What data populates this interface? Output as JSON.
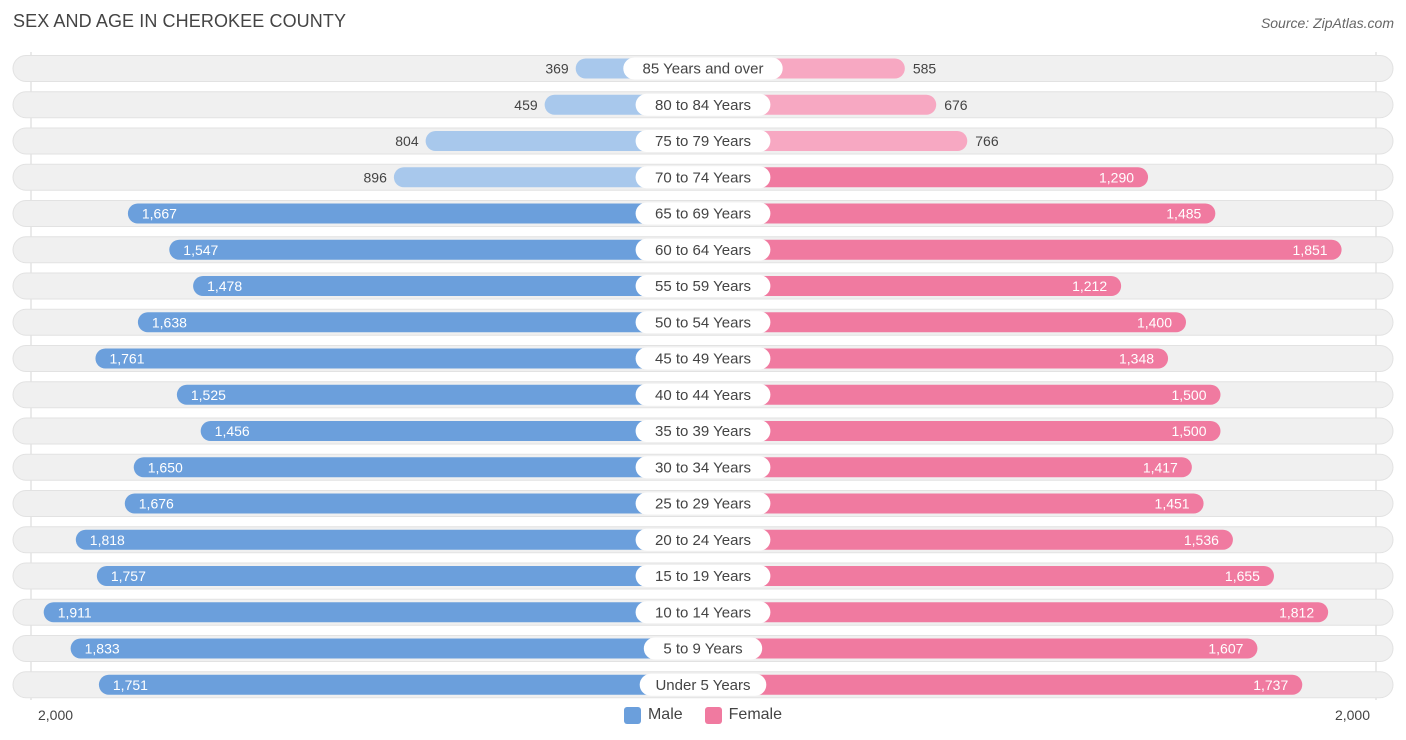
{
  "title": "SEX AND AGE IN CHEROKEE COUNTY",
  "source": "Source: ZipAtlas.com",
  "colors": {
    "male_dark": "#6b9fdc",
    "male_light": "#a8c8ec",
    "female_dark": "#f07aa0",
    "female_light": "#f7a8c2",
    "row_bg": "#f0f0f0"
  },
  "chart_data": {
    "type": "bar",
    "orientation": "horizontal-diverging",
    "categories": [
      "85 Years and over",
      "80 to 84 Years",
      "75 to 79 Years",
      "70 to 74 Years",
      "65 to 69 Years",
      "60 to 64 Years",
      "55 to 59 Years",
      "50 to 54 Years",
      "45 to 49 Years",
      "40 to 44 Years",
      "35 to 39 Years",
      "30 to 34 Years",
      "25 to 29 Years",
      "20 to 24 Years",
      "15 to 19 Years",
      "10 to 14 Years",
      "5 to 9 Years",
      "Under 5 Years"
    ],
    "series": [
      {
        "name": "Male",
        "values": [
          369,
          459,
          804,
          896,
          1667,
          1547,
          1478,
          1638,
          1761,
          1525,
          1456,
          1650,
          1676,
          1818,
          1757,
          1911,
          1833,
          1751
        ],
        "labels": [
          "369",
          "459",
          "804",
          "896",
          "1,667",
          "1,547",
          "1,478",
          "1,638",
          "1,761",
          "1,525",
          "1,456",
          "1,650",
          "1,676",
          "1,818",
          "1,757",
          "1,911",
          "1,833",
          "1,751"
        ]
      },
      {
        "name": "Female",
        "values": [
          585,
          676,
          766,
          1290,
          1485,
          1851,
          1212,
          1400,
          1348,
          1500,
          1500,
          1417,
          1451,
          1536,
          1655,
          1812,
          1607,
          1737
        ],
        "labels": [
          "585",
          "676",
          "766",
          "1,290",
          "1,485",
          "1,851",
          "1,212",
          "1,400",
          "1,348",
          "1,500",
          "1,500",
          "1,417",
          "1,451",
          "1,536",
          "1,655",
          "1,812",
          "1,607",
          "1,737"
        ]
      }
    ],
    "xlim": [
      -2000,
      2000
    ],
    "axis_labels": {
      "left": "2,000",
      "right": "2,000"
    },
    "legend": {
      "position": "bottom-center",
      "items": [
        "Male",
        "Female"
      ]
    }
  }
}
